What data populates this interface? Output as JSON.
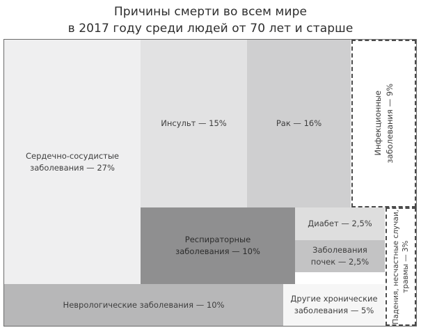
{
  "title_line1": "Причины смерти во всем мире",
  "title_line2": "в 2017 году среди людей от 70 лет и старше",
  "chart_data": {
    "type": "treemap",
    "title": "Причины смерти во всем мире в 2017 году среди людей от 70 лет и старше",
    "unit": "%",
    "items": [
      {
        "label": "Сердечно-сосудистые\nзаболевания — 27%",
        "name": "Сердечно-сосудистые заболевания",
        "value": 27,
        "color": "#efeff0"
      },
      {
        "label": "Инсульт — 15%",
        "name": "Инсульт",
        "value": 15,
        "color": "#e2e2e3"
      },
      {
        "label": "Рак — 16%",
        "name": "Рак",
        "value": 16,
        "color": "#cfcfd0"
      },
      {
        "label": "Инфекционные\nзаболевания — 9%",
        "name": "Инфекционные заболевания",
        "value": 9,
        "color": "#ffffff"
      },
      {
        "label": "Респираторные\nзаболевания — 10%",
        "name": "Респираторные заболевания",
        "value": 10,
        "color": "#8f8f90"
      },
      {
        "label": "Диабет — 2,5%",
        "name": "Диабет",
        "value": 2.5,
        "color": "#dedede"
      },
      {
        "label": "Заболевания\nпочек — 2,5%",
        "name": "Заболевания почек",
        "value": 2.5,
        "color": "#c3c3c4"
      },
      {
        "label": "Падения, несчастные случаи,\nтравмы — 3%",
        "name": "Падения, несчастные случаи, травмы",
        "value": 3,
        "color": "#ffffff"
      },
      {
        "label": "Неврологические заболевания — 10%",
        "name": "Неврологические заболевания",
        "value": 10,
        "color": "#b7b7b8"
      },
      {
        "label": "Другие хронические\nзаболевания — 5%",
        "name": "Другие хронические заболевания",
        "value": 5,
        "color": "#f6f6f6"
      }
    ]
  }
}
